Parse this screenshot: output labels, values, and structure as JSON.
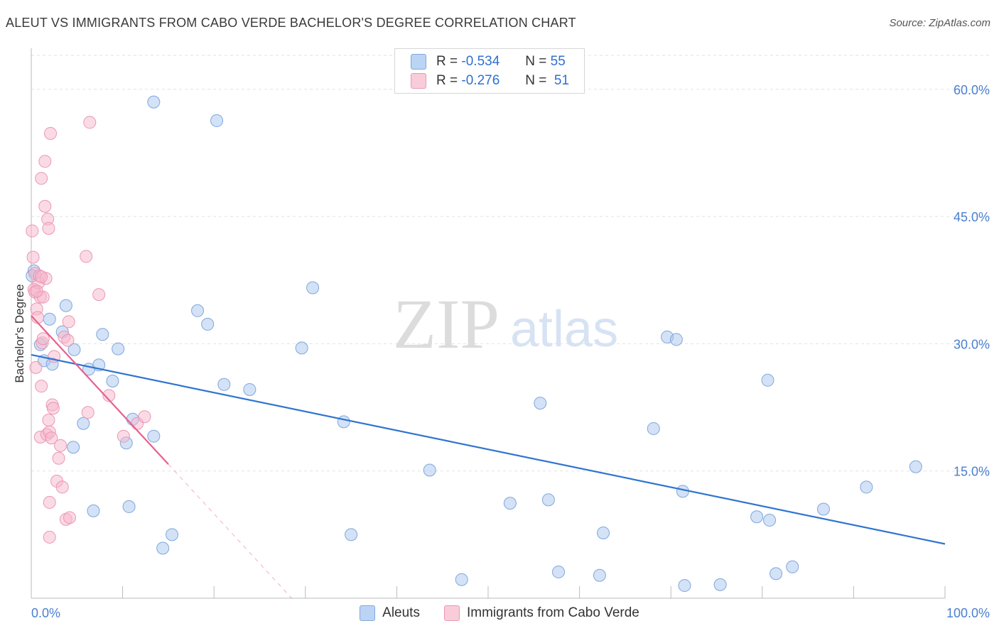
{
  "chart_data": {
    "type": "scatter",
    "title": "ALEUT VS IMMIGRANTS FROM CABO VERDE BACHELOR'S DEGREE CORRELATION CHART",
    "source": "Source: ZipAtlas.com",
    "xlabel": "",
    "ylabel": "Bachelor's Degree",
    "xlim": [
      0,
      100
    ],
    "ylim": [
      0,
      64
    ],
    "x_tick_labels": [
      "0.0%",
      "100.0%"
    ],
    "y_ticks": [
      15,
      30,
      45,
      60
    ],
    "y_tick_labels": [
      "15.0%",
      "30.0%",
      "45.0%",
      "60.0%"
    ],
    "legend": {
      "placement": "top-center",
      "rows": [
        {
          "r_label": "R =",
          "r_value": "-0.534",
          "n_label": "N =",
          "n_value": "55"
        },
        {
          "r_label": "R =",
          "r_value": "-0.276",
          "n_label": "N =",
          "n_value": "51"
        }
      ]
    },
    "watermark": {
      "zip": "ZIP",
      "atlas": "atlas"
    },
    "series": [
      {
        "name": "Aleuts",
        "color": "#a8c6ee",
        "stroke": "#7fa7dc",
        "trend_color": "#2f74d0",
        "trend": {
          "x0": 0,
          "y0": 28.7,
          "x1": 100,
          "y1": 6.4
        },
        "points": [
          [
            0.3,
            38.6
          ],
          [
            1.0,
            29.9
          ],
          [
            1.4,
            28.0
          ],
          [
            2.0,
            32.9
          ],
          [
            2.3,
            27.6
          ],
          [
            3.4,
            31.4
          ],
          [
            3.8,
            34.5
          ],
          [
            4.7,
            29.3
          ],
          [
            4.6,
            17.8
          ],
          [
            5.7,
            20.6
          ],
          [
            6.3,
            27.0
          ],
          [
            6.8,
            10.3
          ],
          [
            7.4,
            27.5
          ],
          [
            7.8,
            31.1
          ],
          [
            8.9,
            25.6
          ],
          [
            9.5,
            29.4
          ],
          [
            10.4,
            18.3
          ],
          [
            10.7,
            10.8
          ],
          [
            11.1,
            21.1
          ],
          [
            13.4,
            19.1
          ],
          [
            13.4,
            58.5
          ],
          [
            14.4,
            5.9
          ],
          [
            15.4,
            7.5
          ],
          [
            18.2,
            33.9
          ],
          [
            19.3,
            32.3
          ],
          [
            20.3,
            56.3
          ],
          [
            21.1,
            25.2
          ],
          [
            23.9,
            24.6
          ],
          [
            29.6,
            29.5
          ],
          [
            30.8,
            36.6
          ],
          [
            34.2,
            20.8
          ],
          [
            35.0,
            7.5
          ],
          [
            43.6,
            15.1
          ],
          [
            47.1,
            2.2
          ],
          [
            52.4,
            11.2
          ],
          [
            55.7,
            23.0
          ],
          [
            56.6,
            11.6
          ],
          [
            57.7,
            3.1
          ],
          [
            62.2,
            2.7
          ],
          [
            62.6,
            7.7
          ],
          [
            68.1,
            20.0
          ],
          [
            69.6,
            30.8
          ],
          [
            70.6,
            30.5
          ],
          [
            71.3,
            12.6
          ],
          [
            71.5,
            1.5
          ],
          [
            75.4,
            1.6
          ],
          [
            79.4,
            9.6
          ],
          [
            80.6,
            25.7
          ],
          [
            80.8,
            9.2
          ],
          [
            81.5,
            2.9
          ],
          [
            83.3,
            3.7
          ],
          [
            86.7,
            10.5
          ],
          [
            91.4,
            13.1
          ],
          [
            96.8,
            15.5
          ],
          [
            0.1,
            38.0
          ]
        ]
      },
      {
        "name": "Immigrants from Cabo Verde",
        "color": "#f6b8cc",
        "stroke": "#ec96b3",
        "trend_color": "#e8608e",
        "trend": {
          "x0": 0,
          "y0": 33.3,
          "x1": 15.0,
          "y1": 15.8
        },
        "trend_dashed": {
          "x0": 15.0,
          "y0": 15.8,
          "x1": 28.5,
          "y1": 0
        },
        "points": [
          [
            0.1,
            43.3
          ],
          [
            0.2,
            40.2
          ],
          [
            0.3,
            36.4
          ],
          [
            0.4,
            38.3
          ],
          [
            0.4,
            36.1
          ],
          [
            0.5,
            27.2
          ],
          [
            0.6,
            34.1
          ],
          [
            0.7,
            33.1
          ],
          [
            0.8,
            37.2
          ],
          [
            0.9,
            38.0
          ],
          [
            1.0,
            35.5
          ],
          [
            1.0,
            19.0
          ],
          [
            1.1,
            49.5
          ],
          [
            1.1,
            25.0
          ],
          [
            1.2,
            30.1
          ],
          [
            1.3,
            35.5
          ],
          [
            1.3,
            30.6
          ],
          [
            1.5,
            46.2
          ],
          [
            1.5,
            51.5
          ],
          [
            1.6,
            37.7
          ],
          [
            1.7,
            19.3
          ],
          [
            1.8,
            44.7
          ],
          [
            1.9,
            43.6
          ],
          [
            1.9,
            21.0
          ],
          [
            2.0,
            19.6
          ],
          [
            2.0,
            7.2
          ],
          [
            2.0,
            11.3
          ],
          [
            2.1,
            54.8
          ],
          [
            2.2,
            18.9
          ],
          [
            2.3,
            22.8
          ],
          [
            2.4,
            22.4
          ],
          [
            2.8,
            13.8
          ],
          [
            3.0,
            16.5
          ],
          [
            3.2,
            18.0
          ],
          [
            3.4,
            13.1
          ],
          [
            3.6,
            30.8
          ],
          [
            3.8,
            9.3
          ],
          [
            4.0,
            30.4
          ],
          [
            4.1,
            32.6
          ],
          [
            4.2,
            9.5
          ],
          [
            6.0,
            40.3
          ],
          [
            6.2,
            21.9
          ],
          [
            6.4,
            56.1
          ],
          [
            7.4,
            35.8
          ],
          [
            8.5,
            23.9
          ],
          [
            10.1,
            19.1
          ],
          [
            11.6,
            20.6
          ],
          [
            12.4,
            21.4
          ],
          [
            1.1,
            37.9
          ],
          [
            2.5,
            28.5
          ],
          [
            0.6,
            36.2
          ]
        ]
      }
    ]
  },
  "bottom_legend": [
    "Aleuts",
    "Immigrants from Cabo Verde"
  ]
}
